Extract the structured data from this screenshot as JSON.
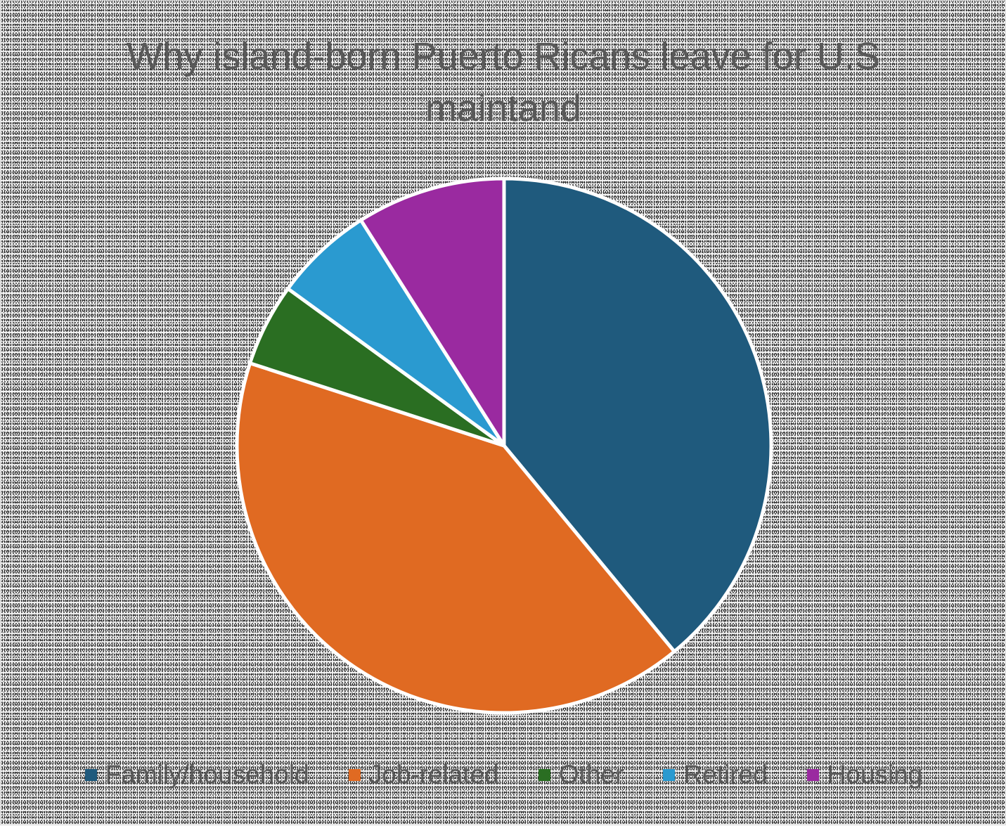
{
  "chart_data": {
    "type": "pie",
    "title": "Why island-born Puerto Ricans leave for U.S maintand",
    "categories": [
      "Family/household",
      "Job-related",
      "Other",
      "Retired",
      "Housing"
    ],
    "values": [
      39,
      41,
      5,
      6,
      9
    ],
    "colors": [
      "#1f5a7d",
      "#e06a22",
      "#2a6e22",
      "#2a9ad0",
      "#9a2aa0"
    ],
    "start_angle_deg": 0,
    "direction": "clockwise",
    "legend_position": "bottom"
  }
}
